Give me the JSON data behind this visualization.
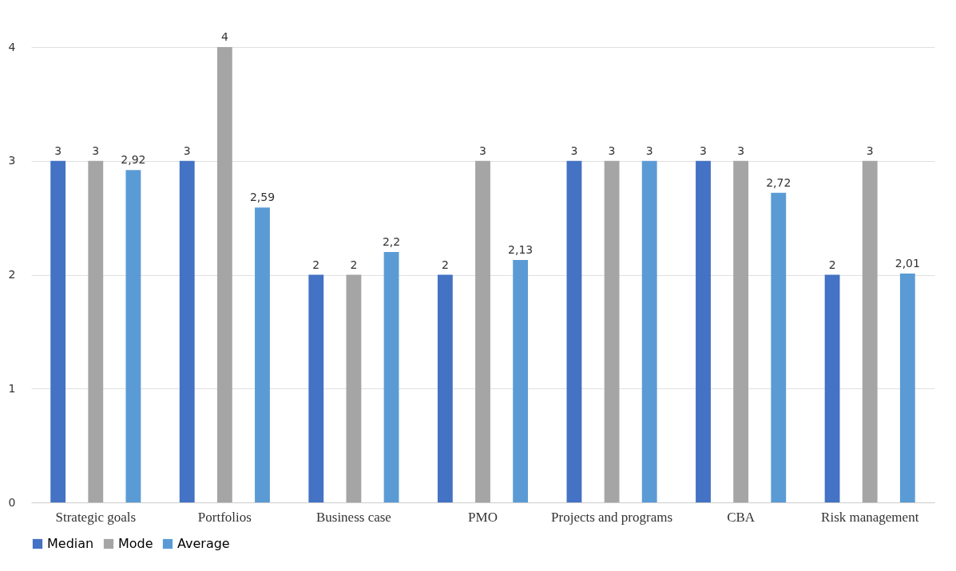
{
  "chart_data": {
    "type": "bar",
    "categories": [
      "Strategic goals",
      "Portfolios",
      "Business case",
      "PMO",
      "Projects and programs",
      "CBA",
      "Risk management"
    ],
    "series": [
      {
        "name": "Median",
        "color": "#4472c4",
        "values": [
          3,
          3,
          2,
          2,
          3,
          3,
          2
        ],
        "value_labels": [
          "3",
          "3",
          "2",
          "2",
          "3",
          "3",
          "2"
        ]
      },
      {
        "name": "Mode",
        "color": "#a5a5a5",
        "values": [
          3,
          4,
          2,
          3,
          3,
          3,
          3
        ],
        "value_labels": [
          "3",
          "4",
          "2",
          "3",
          "3",
          "3",
          "3"
        ]
      },
      {
        "name": "Average",
        "color": "#5b9bd5",
        "values": [
          2.92,
          2.59,
          2.2,
          2.13,
          3,
          2.72,
          2.01
        ],
        "value_labels": [
          "2,92",
          "2,59",
          "2,2",
          "2,13",
          "3",
          "2,72",
          "2,01"
        ]
      }
    ],
    "ylim": [
      0,
      4
    ],
    "yticks": [
      0,
      1,
      2,
      3,
      4
    ],
    "grid": "y",
    "legend": "bottom"
  }
}
